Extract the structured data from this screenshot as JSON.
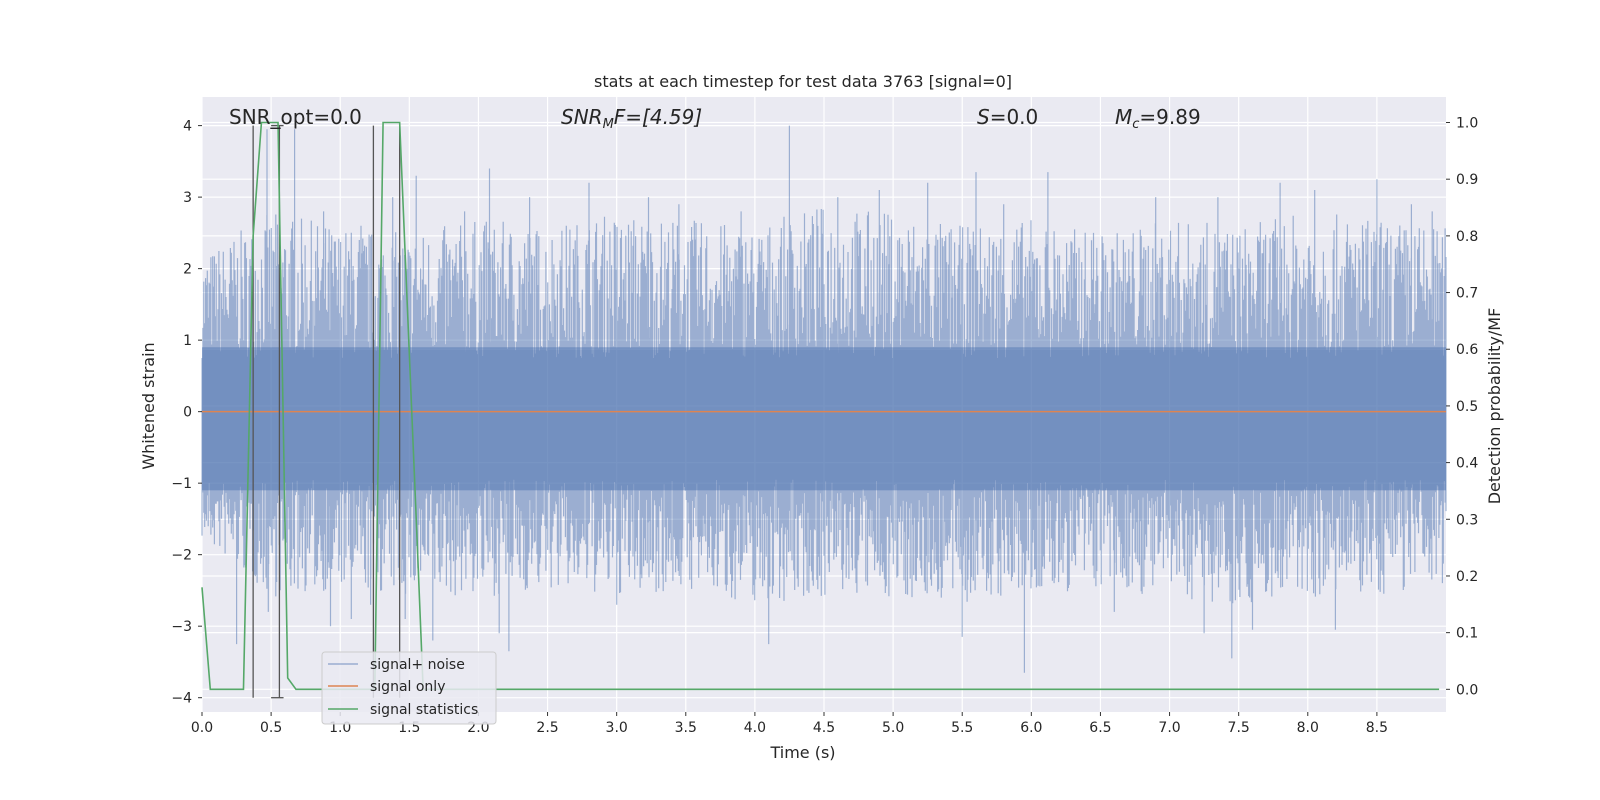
{
  "chart_data": {
    "type": "line",
    "title": "stats at each timestep for test data 3763 [signal=0]",
    "xlabel": "Time (s)",
    "ylabel": "Whitened strain",
    "ylabel_right": "Detection probability/MF",
    "xlim": [
      0,
      9
    ],
    "ylim": [
      -4.2,
      4.4
    ],
    "ylim_right": [
      -0.04,
      1.045
    ],
    "x_ticks": [
      0.0,
      0.5,
      1.0,
      1.5,
      2.0,
      2.5,
      3.0,
      3.5,
      4.0,
      4.5,
      5.0,
      5.5,
      6.0,
      6.5,
      7.0,
      7.5,
      8.0,
      8.5
    ],
    "x_tick_labels": [
      "0.0",
      "0.5",
      "1.0",
      "1.5",
      "2.0",
      "2.5",
      "3.0",
      "3.5",
      "4.0",
      "4.5",
      "5.0",
      "5.5",
      "6.0",
      "6.5",
      "7.0",
      "7.5",
      "8.0",
      "8.5"
    ],
    "y_ticks": [
      4,
      3,
      2,
      1,
      0,
      -1,
      -2,
      -3,
      -4
    ],
    "y_tick_labels": [
      "4",
      "3",
      "2",
      "1",
      "0",
      "−1",
      "−2",
      "−3",
      "−4"
    ],
    "y_right_ticks": [
      1.0,
      0.9,
      0.8,
      0.7,
      0.6,
      0.5,
      0.4,
      0.3,
      0.2,
      0.1,
      0.0
    ],
    "y_right_tick_labels": [
      "1.0",
      "0.9",
      "0.8",
      "0.7",
      "0.6",
      "0.5",
      "0.4",
      "0.3",
      "0.2",
      "0.1",
      "0.0"
    ],
    "grid": true,
    "legend_position": "lower-left",
    "annotations": {
      "snr_opt": "SNR_opt=0.0",
      "snr_mf_name": "SNR",
      "snr_mf_sub": "M",
      "snr_mf_rest": "F=[4.59]",
      "s_name": "S",
      "s_rest": "=0.0",
      "mc_name": "M",
      "mc_sub": "c",
      "mc_rest": "=9.89"
    },
    "noise_envelope": {
      "description_free": true,
      "x": [
        0.0,
        0.5,
        1.0,
        1.5,
        2.0,
        2.5,
        3.0,
        3.5,
        4.0,
        4.5,
        5.0,
        5.5,
        6.0,
        6.5,
        7.0,
        7.5,
        8.0,
        8.5,
        9.0
      ],
      "upper": [
        2.2,
        2.8,
        2.6,
        2.5,
        2.7,
        2.6,
        2.8,
        2.7,
        2.6,
        2.9,
        2.8,
        2.6,
        2.7,
        2.5,
        2.7,
        2.6,
        2.8,
        2.7,
        2.6
      ],
      "lower": [
        -1.8,
        -2.6,
        -2.5,
        -2.6,
        -2.6,
        -2.5,
        -2.6,
        -2.5,
        -2.7,
        -2.6,
        -2.6,
        -2.7,
        -2.6,
        -2.5,
        -2.6,
        -2.7,
        -2.6,
        -2.6,
        -2.4
      ],
      "spikes": [
        [
          0.25,
          -3.25
        ],
        [
          0.47,
          3.95
        ],
        [
          0.48,
          -2.8
        ],
        [
          0.67,
          3.95
        ],
        [
          0.88,
          2.8
        ],
        [
          0.93,
          -3.0
        ],
        [
          1.08,
          -2.9
        ],
        [
          1.15,
          2.6
        ],
        [
          1.22,
          -2.7
        ],
        [
          1.38,
          3.0
        ],
        [
          1.47,
          -2.9
        ],
        [
          1.55,
          3.3
        ],
        [
          1.67,
          -3.2
        ],
        [
          1.9,
          2.8
        ],
        [
          2.08,
          3.4
        ],
        [
          2.15,
          -3.1
        ],
        [
          2.22,
          -3.35
        ],
        [
          2.37,
          3.0
        ],
        [
          2.8,
          3.2
        ],
        [
          3.0,
          -2.7
        ],
        [
          3.23,
          3.0
        ],
        [
          3.45,
          2.9
        ],
        [
          3.9,
          2.8
        ],
        [
          4.1,
          -3.25
        ],
        [
          4.25,
          4.0
        ],
        [
          4.6,
          3.0
        ],
        [
          4.9,
          3.1
        ],
        [
          5.25,
          3.2
        ],
        [
          5.5,
          -3.15
        ],
        [
          5.6,
          3.35
        ],
        [
          5.8,
          2.9
        ],
        [
          5.95,
          -3.65
        ],
        [
          6.12,
          3.35
        ],
        [
          6.45,
          2.5
        ],
        [
          6.6,
          -2.8
        ],
        [
          6.9,
          3.0
        ],
        [
          7.25,
          -3.1
        ],
        [
          7.35,
          3.0
        ],
        [
          7.45,
          -3.45
        ],
        [
          7.6,
          -3.05
        ],
        [
          7.8,
          3.2
        ],
        [
          8.05,
          3.1
        ],
        [
          8.2,
          -3.05
        ],
        [
          8.5,
          3.25
        ],
        [
          8.75,
          2.9
        ],
        [
          8.9,
          2.8
        ]
      ]
    },
    "series": [
      {
        "name": "signal+ noise",
        "color": "#4c72b0",
        "opacity": 0.5
      },
      {
        "name": "signal only",
        "color": "#dd8452",
        "x": [
          0.0,
          9.0
        ],
        "y": [
          0.0,
          0.0
        ]
      },
      {
        "name": "signal statistics",
        "color": "#55a868",
        "axis": "right",
        "x": [
          0.0,
          0.06,
          0.1,
          0.3,
          0.37,
          0.43,
          0.55,
          0.62,
          0.68,
          1.25,
          1.31,
          1.43,
          1.55,
          1.6,
          8.95
        ],
        "y": [
          0.18,
          0.0,
          0.0,
          0.0,
          0.8,
          1.0,
          1.0,
          0.02,
          0.0,
          0.0,
          1.0,
          1.0,
          0.3,
          0.0,
          0.0
        ]
      }
    ],
    "vertical_markers": {
      "color": "#555555",
      "segments": [
        {
          "x": 0.37,
          "y0": -4.0,
          "y1": 4.0
        },
        {
          "x": 0.56,
          "y0": -4.0,
          "y1": 4.0
        },
        {
          "x": 1.24,
          "y0": -4.0,
          "y1": 4.0
        },
        {
          "x": 1.43,
          "y0": -4.0,
          "y1": 4.0
        }
      ],
      "caps": [
        {
          "x0": 0.5,
          "x1": 0.59,
          "y": 4.0
        },
        {
          "x0": 0.5,
          "x1": 0.59,
          "y": -4.0
        }
      ]
    }
  }
}
